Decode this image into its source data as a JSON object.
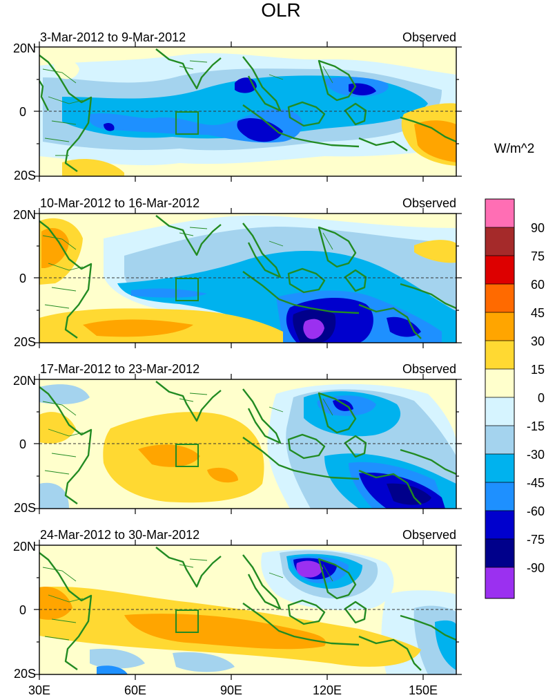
{
  "title": "OLR",
  "units": "W/m^2",
  "colors": {
    "c_m90plus": "#9B30F0",
    "c_m90": "#00008B",
    "c_m75": "#0000CD",
    "c_m60": "#1E90FF",
    "c_m45": "#00B2EE",
    "c_m30": "#A4D3EE",
    "c_m15": "#D6F4FF",
    "c_0": "#FFFFCC",
    "c_15": "#FFD932",
    "c_30": "#FFA500",
    "c_45": "#FF6A00",
    "c_60": "#DD0000",
    "c_75": "#A52A2A",
    "c_90": "#FF6EB4",
    "coast": "#228B22"
  },
  "colorbar": {
    "labels": [
      "90",
      "75",
      "60",
      "45",
      "30",
      "15",
      "0",
      "-15",
      "-30",
      "-45",
      "-60",
      "-75",
      "-90"
    ]
  },
  "lat_labels": [
    "20N",
    "0",
    "20S"
  ],
  "lon_labels": [
    "30E",
    "60E",
    "90E",
    "120E",
    "150E"
  ],
  "panels": [
    {
      "period": "3-Mar-2012 to 9-Mar-2012",
      "tag": "Observed"
    },
    {
      "period": "10-Mar-2012 to 16-Mar-2012",
      "tag": "Observed"
    },
    {
      "period": "17-Mar-2012 to 23-Mar-2012",
      "tag": "Observed"
    },
    {
      "period": "24-Mar-2012 to 30-Mar-2012",
      "tag": "Observed"
    }
  ]
}
